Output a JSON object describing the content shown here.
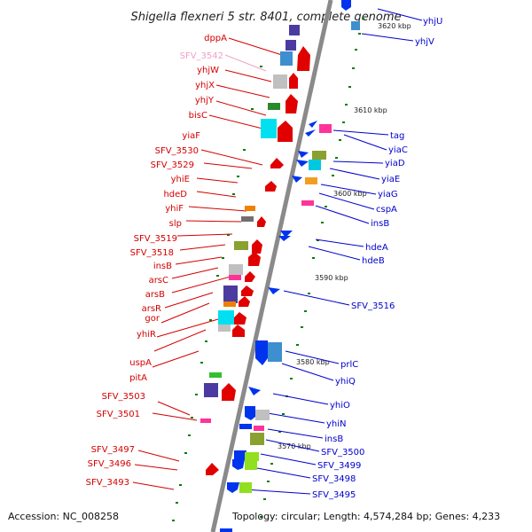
{
  "title": "Shigella flexneri 5 str. 8401, complete genome",
  "footer": {
    "accession": "Accession: NC_008258",
    "topology": "Topology: circular; Length: 4,574,284 bp; Genes: 4,233"
  },
  "colors": {
    "forward": "#d40000",
    "reverse": "#0000cc",
    "pseudo": "#f0a0c8",
    "backbone": "#8a8a8a",
    "tick": "#008000"
  },
  "kbp_markers": [
    {
      "label": "3620 kbp"
    },
    {
      "label": "3610 kbp"
    },
    {
      "label": "3600 kbp"
    },
    {
      "label": "3590 kbp"
    },
    {
      "label": "3580 kbp"
    },
    {
      "label": "3570 kbp"
    }
  ],
  "genes_left": [
    {
      "name": "dppA"
    },
    {
      "name": "SFV_3542"
    },
    {
      "name": "yhjW"
    },
    {
      "name": "yhjX"
    },
    {
      "name": "yhjY"
    },
    {
      "name": "bisC"
    },
    {
      "name": "yiaF"
    },
    {
      "name": "SFV_3530"
    },
    {
      "name": "SFV_3529"
    },
    {
      "name": "yhiE"
    },
    {
      "name": "hdeD"
    },
    {
      "name": "yhiF"
    },
    {
      "name": "slp"
    },
    {
      "name": "SFV_3519"
    },
    {
      "name": "SFV_3518"
    },
    {
      "name": "insB"
    },
    {
      "name": "arsC"
    },
    {
      "name": "arsB"
    },
    {
      "name": "arsR"
    },
    {
      "name": "gor"
    },
    {
      "name": "yhiR"
    },
    {
      "name": "uspA"
    },
    {
      "name": "pitA"
    },
    {
      "name": "SFV_3503"
    },
    {
      "name": "SFV_3501"
    },
    {
      "name": "SFV_3497"
    },
    {
      "name": "SFV_3496"
    },
    {
      "name": "SFV_3493"
    }
  ],
  "genes_right": [
    {
      "name": "yhjU"
    },
    {
      "name": "yhjV"
    },
    {
      "name": "tag"
    },
    {
      "name": "yiaC"
    },
    {
      "name": "yiaD"
    },
    {
      "name": "yiaE"
    },
    {
      "name": "yiaG"
    },
    {
      "name": "cspA"
    },
    {
      "name": "insB"
    },
    {
      "name": "hdeA"
    },
    {
      "name": "hdeB"
    },
    {
      "name": "SFV_3516"
    },
    {
      "name": "prlC"
    },
    {
      "name": "yhiQ"
    },
    {
      "name": "yhiO"
    },
    {
      "name": "yhiN"
    },
    {
      "name": "insB"
    },
    {
      "name": "SFV_3500"
    },
    {
      "name": "SFV_3499"
    },
    {
      "name": "SFV_3498"
    },
    {
      "name": "SFV_3495"
    }
  ]
}
